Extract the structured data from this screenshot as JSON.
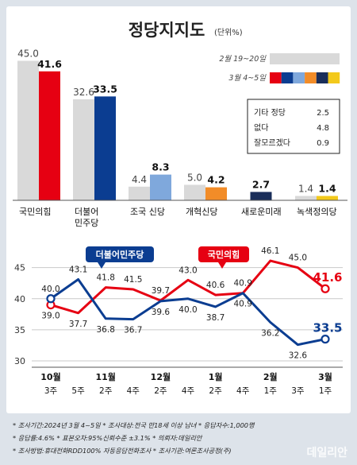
{
  "title": "정당지지도",
  "unit": "(단위%)",
  "legend": {
    "feb": "2월 19~20일",
    "mar": "3월 4~5일"
  },
  "others": [
    {
      "label": "기타 정당",
      "value": "2.5"
    },
    {
      "label": "없다",
      "value": "4.8"
    },
    {
      "label": "잘모르겠다",
      "value": "0.9"
    }
  ],
  "chart_data": [
    {
      "type": "bar",
      "categories": [
        "국민의힘",
        "더불어 민주당",
        "조국 신당",
        "개혁신당",
        "새로운미래",
        "녹색정의당"
      ],
      "series": [
        {
          "name": "2월 19~20일",
          "values": [
            45.0,
            32.6,
            4.4,
            5.0,
            null,
            1.4
          ]
        },
        {
          "name": "3월 4~5일",
          "values": [
            41.6,
            33.5,
            8.3,
            4.2,
            2.7,
            1.4
          ]
        }
      ],
      "colors": [
        "#e60012",
        "#0b3d91",
        "#7fa8dc",
        "#f28c28",
        "#1a2e5a",
        "#f3c91b"
      ],
      "feb_color": "#d9d9d9"
    },
    {
      "type": "line",
      "x": [
        "10월 3주",
        "10월 5주",
        "11월 2주",
        "11월 4주",
        "12월 2주",
        "12월 4주",
        "1월 2주",
        "1월 4주",
        "2월 1주",
        "2월 3주",
        "3월 1주"
      ],
      "x_ticks": [
        {
          "month": "10월",
          "week": "3주"
        },
        {
          "month": "",
          "week": "5주"
        },
        {
          "month": "11월",
          "week": "2주"
        },
        {
          "month": "",
          "week": "4주"
        },
        {
          "month": "12월",
          "week": "2주"
        },
        {
          "month": "",
          "week": "4주"
        },
        {
          "month": "1월",
          "week": "2주"
        },
        {
          "month": "",
          "week": "4주"
        },
        {
          "month": "2월",
          "week": "1주"
        },
        {
          "month": "",
          "week": "3주"
        },
        {
          "month": "3월",
          "week": "1주"
        }
      ],
      "y_ticks": [
        30,
        35,
        40,
        45
      ],
      "ylim": [
        30,
        47
      ],
      "series": [
        {
          "name": "국민의힘",
          "color": "#e60012",
          "values": [
            39.0,
            37.7,
            41.8,
            41.5,
            39.7,
            43.0,
            40.6,
            40.9,
            46.1,
            45.0,
            41.6
          ],
          "labels": [
            "39.0",
            "37.7",
            "41.8",
            "41.5",
            "39.7",
            "43.0",
            "40.6",
            "40.9",
            "46.1",
            "45.0",
            "41.6"
          ]
        },
        {
          "name": "더불어민주당",
          "color": "#0b3d91",
          "values": [
            40.0,
            43.1,
            36.8,
            36.7,
            39.6,
            40.0,
            38.7,
            40.9,
            36.2,
            32.6,
            33.5
          ],
          "labels": [
            "40.0",
            "43.1",
            "36.8",
            "36.7",
            "39.6",
            "40.0",
            "38.7",
            "40.9",
            "36.2",
            "32.6",
            "33.5"
          ]
        }
      ]
    }
  ],
  "footer": {
    "line1": "* 조사기간:2024년 3월 4~5일  * 조사대상:전국 만18세 이상 남녀  * 응답자수:1,000명",
    "line2": "* 응답률:4.6%  * 표본오차:95%신뢰수준 ±3.1%  * 의뢰자:데일리안",
    "line3": "* 조사방법:휴대전화RDD100% 자동응답전화조사  * 조사기관:여론조사공정(주)"
  },
  "watermark": "데일리안"
}
